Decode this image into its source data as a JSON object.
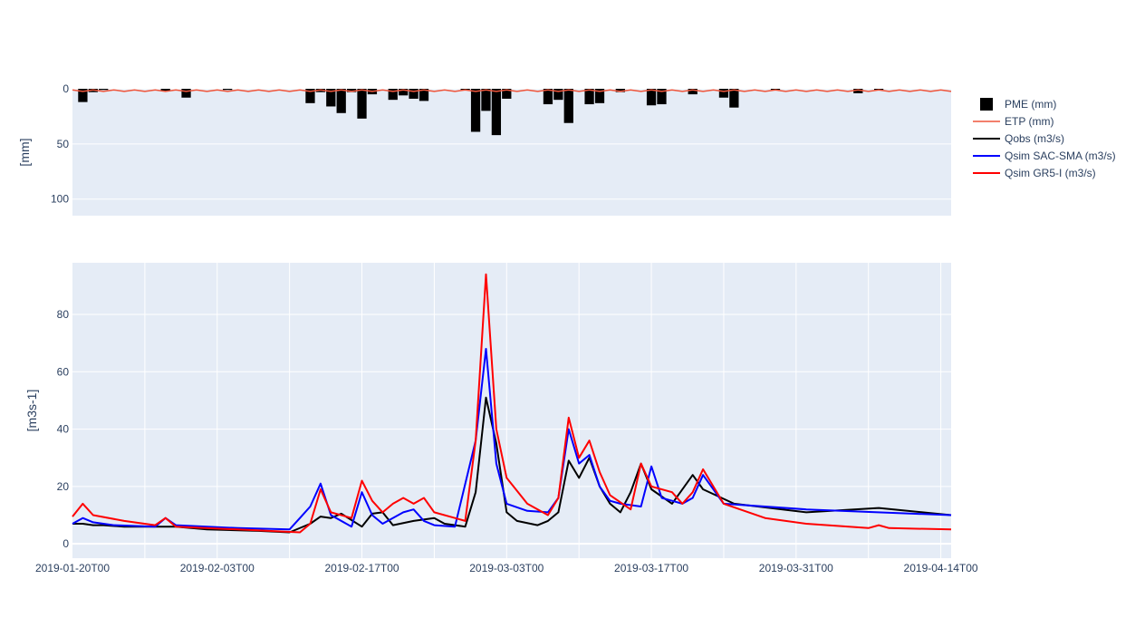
{
  "chart_data": [
    {
      "type": "bar",
      "panel": "top",
      "ylabel": "[mm]",
      "y_reversed": true,
      "ylim": [
        0,
        115
      ],
      "yticks": [
        "0",
        "50",
        "100"
      ],
      "grid": true,
      "series": [
        {
          "name": "PME (mm)",
          "kind": "bar",
          "color": "#000000",
          "points": [
            {
              "x": "2019-01-21",
              "y": 12
            },
            {
              "x": "2019-01-22",
              "y": 3
            },
            {
              "x": "2019-01-23",
              "y": 1
            },
            {
              "x": "2019-01-29",
              "y": 2
            },
            {
              "x": "2019-01-31",
              "y": 8
            },
            {
              "x": "2019-02-04",
              "y": 1
            },
            {
              "x": "2019-02-12",
              "y": 13
            },
            {
              "x": "2019-02-13",
              "y": 3
            },
            {
              "x": "2019-02-14",
              "y": 16
            },
            {
              "x": "2019-02-15",
              "y": 22
            },
            {
              "x": "2019-02-16",
              "y": 3
            },
            {
              "x": "2019-02-17",
              "y": 27
            },
            {
              "x": "2019-02-18",
              "y": 5
            },
            {
              "x": "2019-02-20",
              "y": 10
            },
            {
              "x": "2019-02-21",
              "y": 6
            },
            {
              "x": "2019-02-22",
              "y": 9
            },
            {
              "x": "2019-02-23",
              "y": 11
            },
            {
              "x": "2019-02-27",
              "y": 1
            },
            {
              "x": "2019-02-28",
              "y": 39
            },
            {
              "x": "2019-03-01",
              "y": 20
            },
            {
              "x": "2019-03-02",
              "y": 42
            },
            {
              "x": "2019-03-03",
              "y": 9
            },
            {
              "x": "2019-03-07",
              "y": 14
            },
            {
              "x": "2019-03-08",
              "y": 10
            },
            {
              "x": "2019-03-09",
              "y": 31
            },
            {
              "x": "2019-03-11",
              "y": 14
            },
            {
              "x": "2019-03-12",
              "y": 13
            },
            {
              "x": "2019-03-14",
              "y": 3
            },
            {
              "x": "2019-03-17",
              "y": 15
            },
            {
              "x": "2019-03-18",
              "y": 14
            },
            {
              "x": "2019-03-21",
              "y": 5
            },
            {
              "x": "2019-03-24",
              "y": 8
            },
            {
              "x": "2019-03-25",
              "y": 17
            },
            {
              "x": "2019-03-29",
              "y": 1
            },
            {
              "x": "2019-04-06",
              "y": 4
            },
            {
              "x": "2019-04-08",
              "y": 1
            }
          ]
        },
        {
          "name": "ETP (mm)",
          "kind": "line",
          "color": "#ef553b",
          "pattern": {
            "start": "2019-01-20",
            "end": "2019-04-15",
            "values": [
              1.0,
              2.4
            ]
          }
        }
      ]
    },
    {
      "type": "line",
      "panel": "bottom",
      "ylabel": "[m3s-1]",
      "ylim": [
        -5,
        98
      ],
      "yticks": [
        "0",
        "20",
        "40",
        "60",
        "80"
      ],
      "xlim": [
        "2019-01-20",
        "2019-04-15"
      ],
      "xtick_labels": [
        "2019-01-20T00",
        "2019-02-03T00",
        "2019-02-17T00",
        "2019-03-03T00",
        "2019-03-17T00",
        "2019-03-31T00",
        "2019-04-14T00"
      ],
      "grid": true,
      "legend_position": "right",
      "series": [
        {
          "name": "Qobs (m3/s)",
          "color": "#000000",
          "points": [
            {
              "x": "2019-01-20",
              "y": 7
            },
            {
              "x": "2019-01-21",
              "y": 7
            },
            {
              "x": "2019-01-22",
              "y": 6.5
            },
            {
              "x": "2019-01-23",
              "y": 6.5
            },
            {
              "x": "2019-01-25",
              "y": 6
            },
            {
              "x": "2019-01-30",
              "y": 6
            },
            {
              "x": "2019-02-02",
              "y": 5
            },
            {
              "x": "2019-02-07",
              "y": 4.5
            },
            {
              "x": "2019-02-10",
              "y": 4
            },
            {
              "x": "2019-02-12",
              "y": 7
            },
            {
              "x": "2019-02-13",
              "y": 9.5
            },
            {
              "x": "2019-02-14",
              "y": 9
            },
            {
              "x": "2019-02-15",
              "y": 10.5
            },
            {
              "x": "2019-02-17",
              "y": 6
            },
            {
              "x": "2019-02-18",
              "y": 10.5
            },
            {
              "x": "2019-02-19",
              "y": 11
            },
            {
              "x": "2019-02-20",
              "y": 6.5
            },
            {
              "x": "2019-02-22",
              "y": 8
            },
            {
              "x": "2019-02-24",
              "y": 9
            },
            {
              "x": "2019-02-25",
              "y": 7
            },
            {
              "x": "2019-02-27",
              "y": 6
            },
            {
              "x": "2019-02-28",
              "y": 18
            },
            {
              "x": "2019-03-01",
              "y": 51
            },
            {
              "x": "2019-03-02",
              "y": 35
            },
            {
              "x": "2019-03-03",
              "y": 11
            },
            {
              "x": "2019-03-04",
              "y": 8
            },
            {
              "x": "2019-03-06",
              "y": 6.5
            },
            {
              "x": "2019-03-07",
              "y": 8
            },
            {
              "x": "2019-03-08",
              "y": 11
            },
            {
              "x": "2019-03-09",
              "y": 29
            },
            {
              "x": "2019-03-10",
              "y": 23
            },
            {
              "x": "2019-03-11",
              "y": 30
            },
            {
              "x": "2019-03-12",
              "y": 20
            },
            {
              "x": "2019-03-13",
              "y": 14
            },
            {
              "x": "2019-03-14",
              "y": 11
            },
            {
              "x": "2019-03-15",
              "y": 18
            },
            {
              "x": "2019-03-16",
              "y": 28
            },
            {
              "x": "2019-03-17",
              "y": 19
            },
            {
              "x": "2019-03-19",
              "y": 14
            },
            {
              "x": "2019-03-21",
              "y": 24
            },
            {
              "x": "2019-03-22",
              "y": 19
            },
            {
              "x": "2019-03-25",
              "y": 14
            },
            {
              "x": "2019-04-01",
              "y": 11
            },
            {
              "x": "2019-04-08",
              "y": 12.5
            },
            {
              "x": "2019-04-15",
              "y": 10
            }
          ]
        },
        {
          "name": "Qsim SAC-SMA (m3/s)",
          "color": "#0000ff",
          "points": [
            {
              "x": "2019-01-20",
              "y": 7
            },
            {
              "x": "2019-01-21",
              "y": 9
            },
            {
              "x": "2019-01-22",
              "y": 7.5
            },
            {
              "x": "2019-01-24",
              "y": 6.5
            },
            {
              "x": "2019-01-28",
              "y": 6
            },
            {
              "x": "2019-01-29",
              "y": 9
            },
            {
              "x": "2019-01-30",
              "y": 6.5
            },
            {
              "x": "2019-02-05",
              "y": 5.5
            },
            {
              "x": "2019-02-10",
              "y": 5
            },
            {
              "x": "2019-02-11",
              "y": 9
            },
            {
              "x": "2019-02-12",
              "y": 13
            },
            {
              "x": "2019-02-13",
              "y": 21
            },
            {
              "x": "2019-02-14",
              "y": 10
            },
            {
              "x": "2019-02-16",
              "y": 6
            },
            {
              "x": "2019-02-17",
              "y": 18
            },
            {
              "x": "2019-02-18",
              "y": 10
            },
            {
              "x": "2019-02-19",
              "y": 7
            },
            {
              "x": "2019-02-21",
              "y": 11
            },
            {
              "x": "2019-02-22",
              "y": 12
            },
            {
              "x": "2019-02-23",
              "y": 8
            },
            {
              "x": "2019-02-24",
              "y": 6.5
            },
            {
              "x": "2019-02-26",
              "y": 6
            },
            {
              "x": "2019-02-28",
              "y": 36
            },
            {
              "x": "2019-03-01",
              "y": 68
            },
            {
              "x": "2019-03-02",
              "y": 28
            },
            {
              "x": "2019-03-03",
              "y": 14
            },
            {
              "x": "2019-03-05",
              "y": 11.5
            },
            {
              "x": "2019-03-07",
              "y": 11
            },
            {
              "x": "2019-03-08",
              "y": 16
            },
            {
              "x": "2019-03-09",
              "y": 40
            },
            {
              "x": "2019-03-10",
              "y": 28
            },
            {
              "x": "2019-03-11",
              "y": 31
            },
            {
              "x": "2019-03-12",
              "y": 20
            },
            {
              "x": "2019-03-13",
              "y": 15
            },
            {
              "x": "2019-03-14",
              "y": 14
            },
            {
              "x": "2019-03-16",
              "y": 13
            },
            {
              "x": "2019-03-17",
              "y": 27
            },
            {
              "x": "2019-03-18",
              "y": 16
            },
            {
              "x": "2019-03-19",
              "y": 15
            },
            {
              "x": "2019-03-20",
              "y": 14
            },
            {
              "x": "2019-03-21",
              "y": 16
            },
            {
              "x": "2019-03-22",
              "y": 24
            },
            {
              "x": "2019-03-24",
              "y": 14
            },
            {
              "x": "2019-04-01",
              "y": 12
            },
            {
              "x": "2019-04-15",
              "y": 10
            }
          ]
        },
        {
          "name": "Qsim GR5-I (m3/s)",
          "color": "#ff0000",
          "points": [
            {
              "x": "2019-01-20",
              "y": 9.5
            },
            {
              "x": "2019-01-21",
              "y": 14
            },
            {
              "x": "2019-01-22",
              "y": 10
            },
            {
              "x": "2019-01-25",
              "y": 8
            },
            {
              "x": "2019-01-28",
              "y": 6.5
            },
            {
              "x": "2019-01-29",
              "y": 9
            },
            {
              "x": "2019-01-30",
              "y": 6
            },
            {
              "x": "2019-02-05",
              "y": 5
            },
            {
              "x": "2019-02-11",
              "y": 4
            },
            {
              "x": "2019-02-12",
              "y": 7
            },
            {
              "x": "2019-02-13",
              "y": 19
            },
            {
              "x": "2019-02-14",
              "y": 11
            },
            {
              "x": "2019-02-16",
              "y": 9
            },
            {
              "x": "2019-02-17",
              "y": 22
            },
            {
              "x": "2019-02-18",
              "y": 15
            },
            {
              "x": "2019-02-19",
              "y": 11
            },
            {
              "x": "2019-02-20",
              "y": 14
            },
            {
              "x": "2019-02-21",
              "y": 16
            },
            {
              "x": "2019-02-22",
              "y": 14
            },
            {
              "x": "2019-02-23",
              "y": 16
            },
            {
              "x": "2019-02-24",
              "y": 11
            },
            {
              "x": "2019-02-26",
              "y": 9
            },
            {
              "x": "2019-02-27",
              "y": 8
            },
            {
              "x": "2019-02-28",
              "y": 36
            },
            {
              "x": "2019-03-01",
              "y": 94
            },
            {
              "x": "2019-03-02",
              "y": 40
            },
            {
              "x": "2019-03-03",
              "y": 23
            },
            {
              "x": "2019-03-05",
              "y": 14
            },
            {
              "x": "2019-03-07",
              "y": 10
            },
            {
              "x": "2019-03-08",
              "y": 16
            },
            {
              "x": "2019-03-09",
              "y": 44
            },
            {
              "x": "2019-03-10",
              "y": 30
            },
            {
              "x": "2019-03-11",
              "y": 36
            },
            {
              "x": "2019-03-12",
              "y": 25
            },
            {
              "x": "2019-03-13",
              "y": 17
            },
            {
              "x": "2019-03-15",
              "y": 12
            },
            {
              "x": "2019-03-16",
              "y": 28
            },
            {
              "x": "2019-03-17",
              "y": 20
            },
            {
              "x": "2019-03-19",
              "y": 18
            },
            {
              "x": "2019-03-20",
              "y": 14
            },
            {
              "x": "2019-03-21",
              "y": 18
            },
            {
              "x": "2019-03-22",
              "y": 26
            },
            {
              "x": "2019-03-24",
              "y": 14
            },
            {
              "x": "2019-03-28",
              "y": 9
            },
            {
              "x": "2019-04-01",
              "y": 7
            },
            {
              "x": "2019-04-07",
              "y": 5.5
            },
            {
              "x": "2019-04-08",
              "y": 6.5
            },
            {
              "x": "2019-04-09",
              "y": 5.5
            },
            {
              "x": "2019-04-15",
              "y": 5
            }
          ]
        }
      ]
    }
  ]
}
